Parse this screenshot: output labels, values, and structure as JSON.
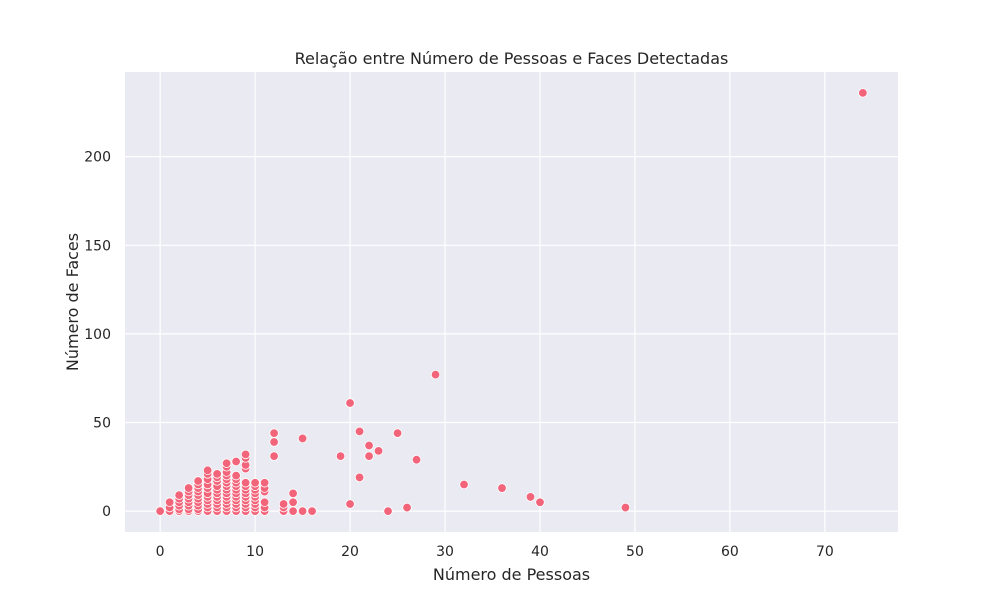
{
  "chart_data": {
    "type": "scatter",
    "title": "Relação entre Número de Pessoas e Faces Detectadas",
    "xlabel": "Número de Pessoas",
    "ylabel": "Número de Faces",
    "xlim": [
      -3.7,
      77.7
    ],
    "ylim": [
      -11.8,
      247.8
    ],
    "xticks": [
      0,
      10,
      20,
      30,
      40,
      50,
      60,
      70
    ],
    "yticks": [
      0,
      50,
      100,
      150,
      200
    ],
    "grid": true,
    "legend": "none",
    "colors": {
      "background": "#EAEAF2",
      "grid": "#FFFFFF",
      "marker": "#F2647A",
      "marker_edge": "#FFFFFF",
      "text": "#262626"
    },
    "points": [
      {
        "x": 0,
        "y": 0
      },
      {
        "x": 1,
        "y": 0
      },
      {
        "x": 1,
        "y": 2
      },
      {
        "x": 1,
        "y": 5
      },
      {
        "x": 2,
        "y": 0
      },
      {
        "x": 2,
        "y": 1
      },
      {
        "x": 2,
        "y": 3
      },
      {
        "x": 2,
        "y": 5
      },
      {
        "x": 2,
        "y": 7
      },
      {
        "x": 2,
        "y": 9
      },
      {
        "x": 3,
        "y": 0
      },
      {
        "x": 3,
        "y": 1
      },
      {
        "x": 3,
        "y": 3
      },
      {
        "x": 3,
        "y": 5
      },
      {
        "x": 3,
        "y": 7
      },
      {
        "x": 3,
        "y": 9
      },
      {
        "x": 3,
        "y": 11
      },
      {
        "x": 3,
        "y": 13
      },
      {
        "x": 4,
        "y": 0
      },
      {
        "x": 4,
        "y": 1
      },
      {
        "x": 4,
        "y": 3
      },
      {
        "x": 4,
        "y": 5
      },
      {
        "x": 4,
        "y": 7
      },
      {
        "x": 4,
        "y": 9
      },
      {
        "x": 4,
        "y": 11
      },
      {
        "x": 4,
        "y": 13
      },
      {
        "x": 4,
        "y": 15
      },
      {
        "x": 4,
        "y": 17
      },
      {
        "x": 5,
        "y": 0
      },
      {
        "x": 5,
        "y": 2
      },
      {
        "x": 5,
        "y": 4
      },
      {
        "x": 5,
        "y": 6
      },
      {
        "x": 5,
        "y": 8
      },
      {
        "x": 5,
        "y": 10
      },
      {
        "x": 5,
        "y": 13
      },
      {
        "x": 5,
        "y": 15
      },
      {
        "x": 5,
        "y": 18
      },
      {
        "x": 5,
        "y": 21
      },
      {
        "x": 5,
        "y": 23
      },
      {
        "x": 6,
        "y": 0
      },
      {
        "x": 6,
        "y": 2
      },
      {
        "x": 6,
        "y": 4
      },
      {
        "x": 6,
        "y": 6
      },
      {
        "x": 6,
        "y": 8
      },
      {
        "x": 6,
        "y": 10
      },
      {
        "x": 6,
        "y": 12
      },
      {
        "x": 6,
        "y": 14
      },
      {
        "x": 6,
        "y": 17
      },
      {
        "x": 6,
        "y": 19
      },
      {
        "x": 6,
        "y": 21
      },
      {
        "x": 7,
        "y": 0
      },
      {
        "x": 7,
        "y": 2
      },
      {
        "x": 7,
        "y": 4
      },
      {
        "x": 7,
        "y": 6
      },
      {
        "x": 7,
        "y": 8
      },
      {
        "x": 7,
        "y": 10
      },
      {
        "x": 7,
        "y": 12
      },
      {
        "x": 7,
        "y": 14
      },
      {
        "x": 7,
        "y": 16
      },
      {
        "x": 7,
        "y": 18
      },
      {
        "x": 7,
        "y": 20
      },
      {
        "x": 7,
        "y": 22
      },
      {
        "x": 7,
        "y": 25
      },
      {
        "x": 7,
        "y": 27
      },
      {
        "x": 8,
        "y": 0
      },
      {
        "x": 8,
        "y": 2
      },
      {
        "x": 8,
        "y": 4
      },
      {
        "x": 8,
        "y": 6
      },
      {
        "x": 8,
        "y": 8
      },
      {
        "x": 8,
        "y": 10
      },
      {
        "x": 8,
        "y": 12
      },
      {
        "x": 8,
        "y": 14
      },
      {
        "x": 8,
        "y": 16
      },
      {
        "x": 8,
        "y": 18
      },
      {
        "x": 8,
        "y": 20
      },
      {
        "x": 8,
        "y": 28
      },
      {
        "x": 9,
        "y": 0
      },
      {
        "x": 9,
        "y": 2
      },
      {
        "x": 9,
        "y": 4
      },
      {
        "x": 9,
        "y": 6
      },
      {
        "x": 9,
        "y": 8
      },
      {
        "x": 9,
        "y": 10
      },
      {
        "x": 9,
        "y": 12
      },
      {
        "x": 9,
        "y": 14
      },
      {
        "x": 9,
        "y": 16
      },
      {
        "x": 9,
        "y": 24
      },
      {
        "x": 9,
        "y": 26
      },
      {
        "x": 9,
        "y": 30
      },
      {
        "x": 9,
        "y": 32
      },
      {
        "x": 10,
        "y": 0
      },
      {
        "x": 10,
        "y": 2
      },
      {
        "x": 10,
        "y": 4
      },
      {
        "x": 10,
        "y": 6
      },
      {
        "x": 10,
        "y": 8
      },
      {
        "x": 10,
        "y": 10
      },
      {
        "x": 10,
        "y": 12
      },
      {
        "x": 10,
        "y": 14
      },
      {
        "x": 10,
        "y": 16
      },
      {
        "x": 11,
        "y": 0
      },
      {
        "x": 11,
        "y": 2
      },
      {
        "x": 11,
        "y": 5
      },
      {
        "x": 11,
        "y": 11
      },
      {
        "x": 11,
        "y": 13
      },
      {
        "x": 11,
        "y": 16
      },
      {
        "x": 12,
        "y": 31
      },
      {
        "x": 12,
        "y": 39
      },
      {
        "x": 12,
        "y": 44
      },
      {
        "x": 13,
        "y": 0
      },
      {
        "x": 13,
        "y": 2
      },
      {
        "x": 13,
        "y": 4
      },
      {
        "x": 14,
        "y": 0
      },
      {
        "x": 14,
        "y": 5
      },
      {
        "x": 14,
        "y": 10
      },
      {
        "x": 15,
        "y": 0
      },
      {
        "x": 15,
        "y": 41
      },
      {
        "x": 16,
        "y": 0
      },
      {
        "x": 19,
        "y": 31
      },
      {
        "x": 20,
        "y": 4
      },
      {
        "x": 20,
        "y": 61
      },
      {
        "x": 21,
        "y": 19
      },
      {
        "x": 21,
        "y": 45
      },
      {
        "x": 22,
        "y": 31
      },
      {
        "x": 22,
        "y": 37
      },
      {
        "x": 23,
        "y": 34
      },
      {
        "x": 24,
        "y": 0
      },
      {
        "x": 25,
        "y": 44
      },
      {
        "x": 26,
        "y": 2
      },
      {
        "x": 27,
        "y": 29
      },
      {
        "x": 29,
        "y": 77
      },
      {
        "x": 32,
        "y": 15
      },
      {
        "x": 36,
        "y": 13
      },
      {
        "x": 39,
        "y": 8
      },
      {
        "x": 40,
        "y": 5
      },
      {
        "x": 49,
        "y": 2
      },
      {
        "x": 74,
        "y": 236
      }
    ]
  }
}
